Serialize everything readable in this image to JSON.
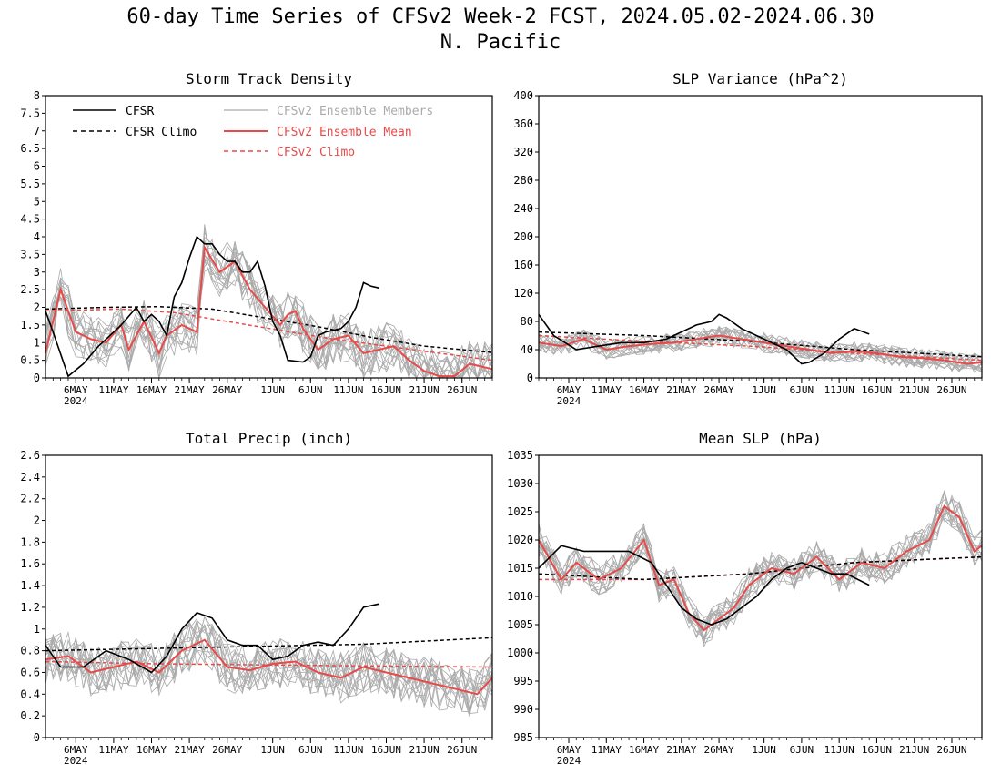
{
  "figure": {
    "title_line1": "60-day Time Series of CFSv2 Week-2 FCST, 2024.05.02-2024.06.30",
    "title_line2": "N. Pacific"
  },
  "legend": {
    "cfsr": "CFSR",
    "cfsr_climo": "CFSR Climo",
    "members": "CFSv2 Ensemble Members",
    "mean": "CFSv2 Ensemble Mean",
    "cfsv2_climo": "CFSv2 Climo"
  },
  "colors": {
    "cfsr": "#000000",
    "members": "#aaaaaa",
    "mean": "#e84a4a",
    "cfsv2_climo": "#e84a4a"
  },
  "chart_data": [
    {
      "type": "line",
      "title": "Storm Track Density",
      "x_range": [
        "2024-05-02",
        "2024-06-30"
      ],
      "ylim": [
        0,
        8
      ],
      "yticks": [
        "0",
        "0.5",
        "1",
        "1.5",
        "2",
        "2.5",
        "3",
        "3.5",
        "4",
        "4.5",
        "5",
        "5.5",
        "6",
        "6.5",
        "7",
        "7.5",
        "8"
      ],
      "xticks": [
        "6MAY",
        "11MAY",
        "16MAY",
        "21MAY",
        "26MAY",
        "1JUN",
        "6JUN",
        "11JUN",
        "16JUN",
        "21JUN",
        "26JUN"
      ],
      "xtick_sub": "2024",
      "series": [
        {
          "name": "CFSR",
          "x": [
            "2024-05-02",
            "2024-05-03",
            "2024-05-05",
            "2024-05-07",
            "2024-05-09",
            "2024-05-10",
            "2024-05-12",
            "2024-05-14",
            "2024-05-15",
            "2024-05-16",
            "2024-05-17",
            "2024-05-18",
            "2024-05-19",
            "2024-05-20",
            "2024-05-21",
            "2024-05-22",
            "2024-05-23",
            "2024-05-24",
            "2024-05-25",
            "2024-05-26",
            "2024-05-27",
            "2024-05-28",
            "2024-05-29",
            "2024-05-30",
            "2024-05-31",
            "2024-06-01",
            "2024-06-02",
            "2024-06-03",
            "2024-06-05",
            "2024-06-06",
            "2024-06-07",
            "2024-06-08",
            "2024-06-10",
            "2024-06-11",
            "2024-06-12",
            "2024-06-13",
            "2024-06-14",
            "2024-06-15"
          ],
          "y": [
            1.9,
            1.3,
            0.05,
            0.4,
            0.9,
            1.1,
            1.5,
            2.0,
            1.6,
            1.8,
            1.6,
            1.2,
            2.3,
            2.7,
            3.4,
            4.0,
            3.8,
            3.8,
            3.5,
            3.3,
            3.3,
            3.0,
            3.0,
            3.3,
            2.6,
            1.6,
            1.2,
            0.5,
            0.45,
            0.6,
            1.2,
            1.3,
            1.4,
            1.6,
            2.0,
            2.7,
            2.6,
            2.55
          ]
        },
        {
          "name": "CFSR Climo",
          "x": [
            "2024-05-02",
            "2024-05-10",
            "2024-05-17",
            "2024-05-24",
            "2024-05-31",
            "2024-06-07",
            "2024-06-14",
            "2024-06-21",
            "2024-06-30"
          ],
          "y": [
            1.95,
            2.0,
            2.02,
            1.95,
            1.7,
            1.45,
            1.15,
            0.9,
            0.72
          ]
        },
        {
          "name": "CFSv2 Ensemble Mean",
          "x": [
            "2024-05-02",
            "2024-05-04",
            "2024-05-06",
            "2024-05-08",
            "2024-05-10",
            "2024-05-12",
            "2024-05-13",
            "2024-05-15",
            "2024-05-17",
            "2024-05-18",
            "2024-05-20",
            "2024-05-22",
            "2024-05-23",
            "2024-05-25",
            "2024-05-27",
            "2024-05-29",
            "2024-05-31",
            "2024-06-02",
            "2024-06-03",
            "2024-06-04",
            "2024-06-05",
            "2024-06-07",
            "2024-06-09",
            "2024-06-11",
            "2024-06-13",
            "2024-06-15",
            "2024-06-17",
            "2024-06-19",
            "2024-06-21",
            "2024-06-23",
            "2024-06-25",
            "2024-06-27",
            "2024-06-30"
          ],
          "y": [
            0.7,
            2.5,
            1.3,
            1.1,
            1.0,
            1.5,
            0.8,
            1.6,
            0.7,
            1.2,
            1.5,
            1.3,
            3.7,
            3.0,
            3.3,
            2.5,
            2.0,
            1.5,
            1.8,
            1.9,
            1.4,
            0.8,
            1.1,
            1.2,
            0.7,
            0.8,
            0.9,
            0.5,
            0.2,
            0.05,
            0.05,
            0.4,
            0.25
          ]
        },
        {
          "name": "CFSv2 Climo",
          "x": [
            "2024-05-02",
            "2024-05-12",
            "2024-05-19",
            "2024-05-26",
            "2024-06-02",
            "2024-06-09",
            "2024-06-16",
            "2024-06-23",
            "2024-06-30"
          ],
          "y": [
            1.9,
            1.95,
            1.85,
            1.6,
            1.35,
            1.1,
            0.9,
            0.7,
            0.5
          ]
        }
      ]
    },
    {
      "type": "line",
      "title": "SLP Variance (hPa^2)",
      "x_range": [
        "2024-05-02",
        "2024-06-30"
      ],
      "ylim": [
        0,
        400
      ],
      "yticks": [
        "0",
        "40",
        "80",
        "120",
        "160",
        "200",
        "240",
        "280",
        "320",
        "360",
        "400"
      ],
      "xticks": [
        "6MAY",
        "11MAY",
        "16MAY",
        "21MAY",
        "26MAY",
        "1JUN",
        "6JUN",
        "11JUN",
        "16JUN",
        "21JUN",
        "26JUN"
      ],
      "xtick_sub": "2024",
      "series": [
        {
          "name": "CFSR",
          "x": [
            "2024-05-02",
            "2024-05-04",
            "2024-05-07",
            "2024-05-10",
            "2024-05-13",
            "2024-05-16",
            "2024-05-19",
            "2024-05-21",
            "2024-05-23",
            "2024-05-25",
            "2024-05-26",
            "2024-05-27",
            "2024-05-29",
            "2024-06-01",
            "2024-06-04",
            "2024-06-06",
            "2024-06-07",
            "2024-06-09",
            "2024-06-11",
            "2024-06-13",
            "2024-06-15"
          ],
          "y": [
            90,
            60,
            40,
            45,
            50,
            50,
            55,
            65,
            75,
            80,
            90,
            85,
            70,
            55,
            40,
            20,
            22,
            35,
            55,
            70,
            62
          ]
        },
        {
          "name": "CFSR Climo",
          "x": [
            "2024-05-02",
            "2024-05-16",
            "2024-05-30",
            "2024-06-13",
            "2024-06-30"
          ],
          "y": [
            65,
            60,
            52,
            40,
            30
          ]
        },
        {
          "name": "CFSv2 Ensemble Mean",
          "x": [
            "2024-05-02",
            "2024-05-05",
            "2024-05-08",
            "2024-05-11",
            "2024-05-14",
            "2024-05-17",
            "2024-05-20",
            "2024-05-23",
            "2024-05-26",
            "2024-05-29",
            "2024-06-01",
            "2024-06-04",
            "2024-06-07",
            "2024-06-10",
            "2024-06-13",
            "2024-06-16",
            "2024-06-19",
            "2024-06-22",
            "2024-06-25",
            "2024-06-28",
            "2024-06-30"
          ],
          "y": [
            50,
            45,
            55,
            40,
            45,
            48,
            50,
            55,
            60,
            55,
            50,
            45,
            40,
            35,
            38,
            35,
            30,
            28,
            25,
            20,
            22
          ]
        },
        {
          "name": "CFSv2 Climo",
          "x": [
            "2024-05-02",
            "2024-05-16",
            "2024-05-30",
            "2024-06-13",
            "2024-06-30"
          ],
          "y": [
            60,
            52,
            45,
            35,
            25
          ]
        }
      ]
    },
    {
      "type": "line",
      "title": "Total Precip (inch)",
      "x_range": [
        "2024-05-02",
        "2024-06-30"
      ],
      "ylim": [
        0,
        2.6
      ],
      "yticks": [
        "0",
        "0.2",
        "0.4",
        "0.6",
        "0.8",
        "1",
        "1.2",
        "1.4",
        "1.6",
        "1.8",
        "2",
        "2.2",
        "2.4",
        "2.6"
      ],
      "xticks": [
        "6MAY",
        "11MAY",
        "16MAY",
        "21MAY",
        "26MAY",
        "1JUN",
        "6JUN",
        "11JUN",
        "16JUN",
        "21JUN",
        "26JUN"
      ],
      "xtick_sub": "2024",
      "series": [
        {
          "name": "CFSR",
          "x": [
            "2024-05-02",
            "2024-05-04",
            "2024-05-07",
            "2024-05-10",
            "2024-05-13",
            "2024-05-16",
            "2024-05-18",
            "2024-05-20",
            "2024-05-22",
            "2024-05-24",
            "2024-05-26",
            "2024-05-28",
            "2024-05-30",
            "2024-06-01",
            "2024-06-03",
            "2024-06-05",
            "2024-06-07",
            "2024-06-09",
            "2024-06-11",
            "2024-06-13",
            "2024-06-15"
          ],
          "y": [
            0.85,
            0.65,
            0.65,
            0.8,
            0.72,
            0.6,
            0.75,
            1.0,
            1.15,
            1.1,
            0.9,
            0.85,
            0.85,
            0.72,
            0.75,
            0.85,
            0.88,
            0.85,
            1.0,
            1.2,
            1.23
          ]
        },
        {
          "name": "CFSR Climo",
          "x": [
            "2024-05-02",
            "2024-05-16",
            "2024-05-30",
            "2024-06-13",
            "2024-06-30"
          ],
          "y": [
            0.8,
            0.82,
            0.84,
            0.86,
            0.92
          ]
        },
        {
          "name": "CFSv2 Ensemble Mean",
          "x": [
            "2024-05-02",
            "2024-05-05",
            "2024-05-08",
            "2024-05-11",
            "2024-05-14",
            "2024-05-17",
            "2024-05-20",
            "2024-05-23",
            "2024-05-26",
            "2024-05-29",
            "2024-06-01",
            "2024-06-04",
            "2024-06-07",
            "2024-06-10",
            "2024-06-13",
            "2024-06-16",
            "2024-06-19",
            "2024-06-22",
            "2024-06-25",
            "2024-06-28",
            "2024-06-30"
          ],
          "y": [
            0.72,
            0.75,
            0.6,
            0.65,
            0.7,
            0.6,
            0.8,
            0.9,
            0.65,
            0.62,
            0.68,
            0.7,
            0.6,
            0.55,
            0.65,
            0.6,
            0.55,
            0.5,
            0.45,
            0.4,
            0.55
          ]
        },
        {
          "name": "CFSv2 Climo",
          "x": [
            "2024-05-02",
            "2024-05-16",
            "2024-05-30",
            "2024-06-13",
            "2024-06-30"
          ],
          "y": [
            0.7,
            0.68,
            0.67,
            0.66,
            0.65
          ]
        }
      ]
    },
    {
      "type": "line",
      "title": "Mean SLP (hPa)",
      "x_range": [
        "2024-05-02",
        "2024-06-30"
      ],
      "ylim": [
        985,
        1035
      ],
      "yticks": [
        "985",
        "990",
        "995",
        "1000",
        "1005",
        "1010",
        "1015",
        "1020",
        "1025",
        "1030",
        "1035"
      ],
      "xticks": [
        "6MAY",
        "11MAY",
        "16MAY",
        "21MAY",
        "26MAY",
        "1JUN",
        "6JUN",
        "11JUN",
        "16JUN",
        "21JUN",
        "26JUN"
      ],
      "xtick_sub": "2024",
      "series": [
        {
          "name": "CFSR",
          "x": [
            "2024-05-02",
            "2024-05-05",
            "2024-05-08",
            "2024-05-11",
            "2024-05-14",
            "2024-05-17",
            "2024-05-19",
            "2024-05-21",
            "2024-05-23",
            "2024-05-25",
            "2024-05-27",
            "2024-05-29",
            "2024-05-31",
            "2024-06-02",
            "2024-06-04",
            "2024-06-06",
            "2024-06-08",
            "2024-06-10",
            "2024-06-12",
            "2024-06-15"
          ],
          "y": [
            1015,
            1019,
            1018,
            1018,
            1018,
            1016,
            1012,
            1008,
            1006,
            1005,
            1006,
            1008,
            1010,
            1013,
            1015,
            1016,
            1015,
            1014,
            1014,
            1012
          ]
        },
        {
          "name": "CFSR Climo",
          "x": [
            "2024-05-02",
            "2024-05-16",
            "2024-05-30",
            "2024-06-13",
            "2024-06-30"
          ],
          "y": [
            1014,
            1013,
            1014,
            1016,
            1017
          ]
        },
        {
          "name": "CFSv2 Ensemble Mean",
          "x": [
            "2024-05-02",
            "2024-05-05",
            "2024-05-07",
            "2024-05-10",
            "2024-05-13",
            "2024-05-16",
            "2024-05-18",
            "2024-05-20",
            "2024-05-22",
            "2024-05-24",
            "2024-05-26",
            "2024-05-28",
            "2024-05-30",
            "2024-06-02",
            "2024-06-05",
            "2024-06-08",
            "2024-06-11",
            "2024-06-14",
            "2024-06-17",
            "2024-06-20",
            "2024-06-23",
            "2024-06-25",
            "2024-06-27",
            "2024-06-29",
            "2024-06-30"
          ],
          "y": [
            1020,
            1013,
            1016,
            1013,
            1015,
            1020,
            1012,
            1013,
            1007,
            1004,
            1006,
            1008,
            1012,
            1015,
            1014,
            1017,
            1013,
            1016,
            1015,
            1018,
            1020,
            1026,
            1024,
            1018,
            1019
          ]
        },
        {
          "name": "CFSv2 Climo",
          "x": [
            "2024-05-02",
            "2024-05-16",
            "2024-05-30",
            "2024-06-13",
            "2024-06-30"
          ],
          "y": [
            1013,
            1013,
            1014,
            1016,
            1017
          ]
        }
      ]
    }
  ]
}
